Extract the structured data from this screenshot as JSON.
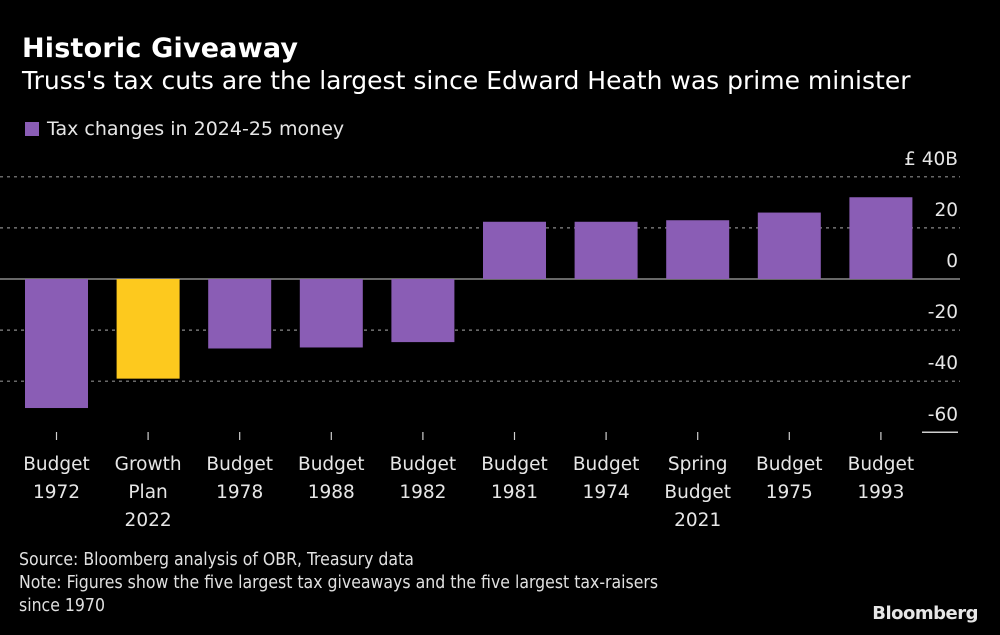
{
  "header": {
    "title": "Historic Giveaway",
    "subtitle": "Truss's tax cuts are the largest since Edward Heath was prime minister"
  },
  "legend": {
    "label": "Tax changes in 2024-25 money",
    "color": "#8a5db5"
  },
  "colors": {
    "default_bar": "#8a5db5",
    "highlight_bar": "#fdc91e",
    "background": "#000000",
    "gridline": "#8a8a8a",
    "zero_line": "#8a8a8a"
  },
  "footer": {
    "source": "Source: Bloomberg analysis of OBR, Treasury data",
    "note_line1": "Note: Figures show the five largest tax giveaways and the five largest tax-raisers",
    "note_line2": "since 1970",
    "brand": "Bloomberg"
  },
  "chart_data": {
    "type": "bar",
    "title": "Historic Giveaway",
    "subtitle": "Truss's tax cuts are the largest since Edward Heath was prime minister",
    "xlabel": "",
    "ylabel": "",
    "y_unit_label": "£ 40B",
    "ylim": [
      -60,
      40
    ],
    "yticks": [
      40,
      20,
      0,
      -20,
      -40,
      -60
    ],
    "ytick_labels": [
      "£ 40B",
      "20",
      "0",
      "-20",
      "-40",
      "-60"
    ],
    "grid": true,
    "legend_position": "top-left",
    "categories": [
      [
        "Budget",
        "1972"
      ],
      [
        "Growth",
        "Plan",
        "2022"
      ],
      [
        "Budget",
        "1978"
      ],
      [
        "Budget",
        "1988"
      ],
      [
        "Budget",
        "1982"
      ],
      [
        "Budget",
        "1981"
      ],
      [
        "Budget",
        "1974"
      ],
      [
        "Spring",
        "Budget",
        "2021"
      ],
      [
        "Budget",
        "1975"
      ],
      [
        "Budget",
        "1993"
      ]
    ],
    "series": [
      {
        "name": "Tax changes in 2024-25 money",
        "values": [
          -50.5,
          -39,
          -27.2,
          -26.8,
          -24.7,
          22.4,
          22.4,
          23,
          26,
          32
        ],
        "highlight_index": 1
      }
    ]
  }
}
